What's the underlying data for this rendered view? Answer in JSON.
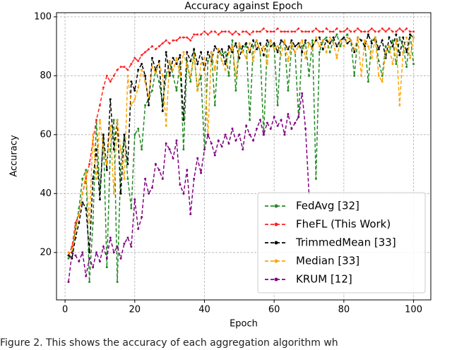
{
  "chart_data": {
    "type": "line",
    "title": "Accuracy against Epoch",
    "xlabel": "Epoch",
    "ylabel": "Accuracy",
    "x": [
      1,
      2,
      3,
      4,
      5,
      6,
      7,
      8,
      9,
      10,
      11,
      12,
      13,
      14,
      15,
      16,
      17,
      18,
      19,
      20,
      21,
      22,
      23,
      24,
      25,
      26,
      27,
      28,
      29,
      30,
      31,
      32,
      33,
      34,
      35,
      36,
      37,
      38,
      39,
      40,
      41,
      42,
      43,
      44,
      45,
      46,
      47,
      48,
      49,
      50,
      51,
      52,
      53,
      54,
      55,
      56,
      57,
      58,
      59,
      60,
      61,
      62,
      63,
      64,
      65,
      66,
      67,
      68,
      69,
      70,
      71,
      72,
      73,
      74,
      75,
      76,
      77,
      78,
      79,
      80,
      81,
      82,
      83,
      84,
      85,
      86,
      87,
      88,
      89,
      90,
      91,
      92,
      93,
      94,
      95,
      96,
      97,
      98,
      99,
      100
    ],
    "series": [
      {
        "name": "FedAvg [32]",
        "color": "#228b22",
        "values": [
          18,
          20,
          28,
          35,
          45,
          48,
          10,
          30,
          65,
          40,
          60,
          15,
          55,
          65,
          10,
          50,
          60,
          45,
          35,
          60,
          62,
          55,
          70,
          72,
          75,
          82,
          78,
          70,
          80,
          85,
          80,
          75,
          84,
          55,
          85,
          78,
          88,
          75,
          80,
          55,
          85,
          88,
          70,
          89,
          87,
          88,
          80,
          92,
          75,
          90,
          88,
          91,
          65,
          90,
          92,
          88,
          60,
          90,
          92,
          90,
          70,
          92,
          91,
          75,
          90,
          88,
          66,
          90,
          91,
          80,
          92,
          45,
          88,
          92,
          93,
          88,
          92,
          94,
          90,
          93,
          94,
          92,
          80,
          93,
          92,
          91,
          78,
          92,
          93,
          85,
          80,
          90,
          88,
          92,
          84,
          93,
          90,
          83,
          94,
          84
        ]
      },
      {
        "name": "FheFL (This Work)",
        "color": "#ff2020",
        "values": [
          19,
          22,
          30,
          33,
          40,
          45,
          50,
          58,
          65,
          70,
          76,
          80,
          78,
          80,
          82,
          83,
          83,
          82,
          84,
          86,
          85,
          87,
          88,
          89,
          90,
          89,
          90,
          91,
          92,
          91,
          92,
          92,
          93,
          93,
          93,
          92,
          94,
          94,
          94,
          95,
          94,
          95,
          95,
          94,
          95,
          95,
          95,
          94,
          95,
          94,
          95,
          95,
          94,
          95,
          95,
          95,
          96,
          95,
          95,
          95,
          96,
          95,
          95,
          95,
          95,
          95,
          96,
          95,
          95,
          95,
          95,
          96,
          95,
          95,
          96,
          95,
          95,
          96,
          95,
          95,
          96,
          95,
          95,
          96,
          95,
          95,
          95,
          96,
          95,
          95,
          96,
          95,
          96,
          95,
          95,
          96,
          95,
          96,
          95,
          95
        ]
      },
      {
        "name": "TrimmedMean [33]",
        "color": "#000000",
        "values": [
          19,
          18,
          25,
          30,
          37,
          35,
          20,
          45,
          55,
          38,
          60,
          48,
          72,
          55,
          65,
          40,
          60,
          50,
          78,
          75,
          82,
          84,
          80,
          70,
          86,
          82,
          85,
          68,
          88,
          80,
          86,
          84,
          87,
          65,
          88,
          85,
          89,
          84,
          88,
          82,
          88,
          85,
          90,
          88,
          89,
          84,
          90,
          88,
          91,
          86,
          90,
          91,
          88,
          92,
          89,
          91,
          87,
          92,
          90,
          91,
          88,
          92,
          91,
          89,
          92,
          90,
          91,
          88,
          92,
          91,
          90,
          92,
          93,
          89,
          92,
          91,
          93,
          90,
          92,
          93,
          91,
          92,
          88,
          93,
          92,
          90,
          94,
          91,
          93,
          89,
          92,
          86,
          93,
          90,
          94,
          87,
          93,
          88,
          94,
          93
        ]
      },
      {
        "name": "Median [33]",
        "color": "#ffa500",
        "values": [
          20,
          20,
          27,
          33,
          40,
          47,
          30,
          60,
          45,
          65,
          55,
          50,
          63,
          40,
          65,
          55,
          45,
          80,
          70,
          72,
          76,
          82,
          78,
          73,
          83,
          81,
          84,
          80,
          63,
          85,
          82,
          86,
          80,
          88,
          83,
          80,
          87,
          75,
          84,
          86,
          60,
          88,
          82,
          89,
          85,
          82,
          88,
          90,
          80,
          91,
          88,
          86,
          91,
          85,
          92,
          88,
          90,
          84,
          92,
          89,
          90,
          87,
          92,
          85,
          91,
          88,
          90,
          92,
          86,
          91,
          89,
          93,
          90,
          92,
          88,
          93,
          91,
          86,
          92,
          90,
          93,
          92,
          89,
          93,
          80,
          92,
          90,
          86,
          93,
          80,
          78,
          88,
          90,
          84,
          92,
          70,
          88,
          93,
          86,
          93
        ]
      },
      {
        "name": "KRUM [12]",
        "color": "#800080",
        "values": [
          10,
          20,
          19,
          17,
          20,
          12,
          18,
          15,
          20,
          17,
          22,
          18,
          25,
          20,
          22,
          18,
          23,
          25,
          22,
          38,
          28,
          32,
          45,
          40,
          42,
          50,
          48,
          45,
          57,
          55,
          52,
          58,
          43,
          40,
          48,
          33,
          45,
          52,
          47,
          55,
          60,
          57,
          53,
          58,
          56,
          60,
          57,
          62,
          58,
          60,
          55,
          63,
          60,
          58,
          62,
          65,
          60,
          64,
          62,
          66,
          63,
          65,
          60,
          67,
          62,
          64,
          66,
          74,
          62,
          40,
          null,
          null,
          null,
          null,
          null,
          null,
          null,
          null,
          null,
          null,
          null,
          null,
          null,
          null,
          null,
          null,
          null,
          null,
          null,
          null,
          null,
          null,
          null,
          null,
          null,
          null,
          null,
          null,
          null,
          null
        ]
      }
    ],
    "xlim": [
      -2.45,
      104.95
    ],
    "ylim": [
      3.9,
      101.4
    ],
    "xticks": [
      0,
      20,
      40,
      60,
      80,
      100
    ],
    "yticks": [
      20,
      40,
      60,
      80,
      100
    ],
    "grid": true,
    "legend": "lower right"
  },
  "caption": "Figure 2. This shows the accuracy of each aggregation algorithm wh"
}
